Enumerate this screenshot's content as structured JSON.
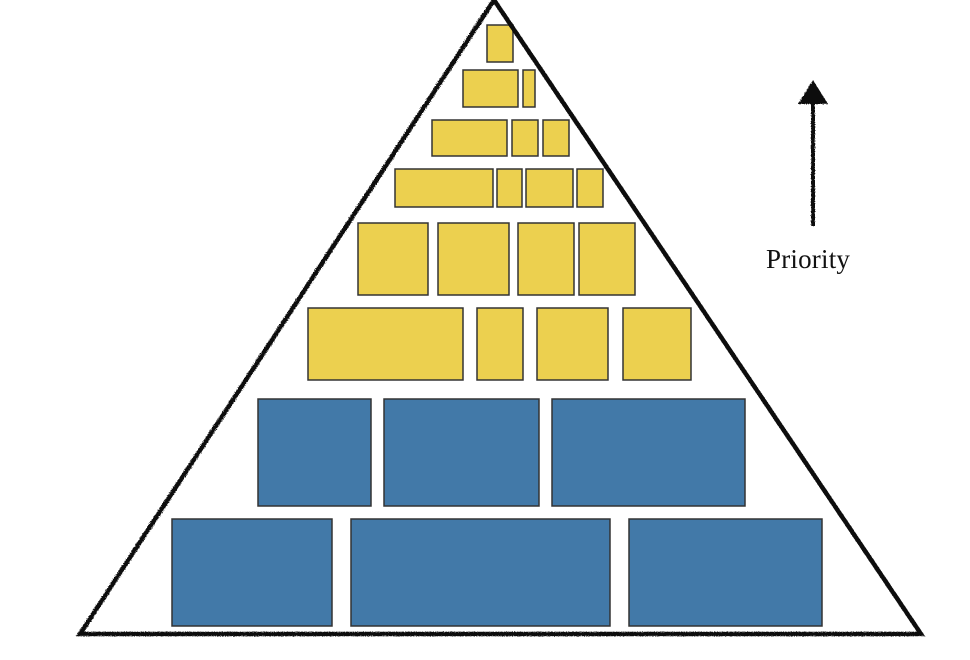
{
  "diagram": {
    "type": "priority-pyramid",
    "priority_label": "Priority",
    "arrow_direction": "up",
    "colors": {
      "outline": "#111111",
      "yellow_block": "#ecd04f",
      "blue_block": "#4279a8",
      "block_border": "#333333"
    },
    "tiers": [
      {
        "tier": 1,
        "color": "yellow",
        "blocks": 1
      },
      {
        "tier": 2,
        "color": "yellow",
        "blocks": 2
      },
      {
        "tier": 3,
        "color": "yellow",
        "blocks": 3
      },
      {
        "tier": 4,
        "color": "yellow",
        "blocks": 4
      },
      {
        "tier": 5,
        "color": "yellow",
        "blocks": 4
      },
      {
        "tier": 6,
        "color": "yellow",
        "blocks": 4
      },
      {
        "tier": 7,
        "color": "blue",
        "blocks": 3
      },
      {
        "tier": 8,
        "color": "blue",
        "blocks": 3
      }
    ]
  }
}
